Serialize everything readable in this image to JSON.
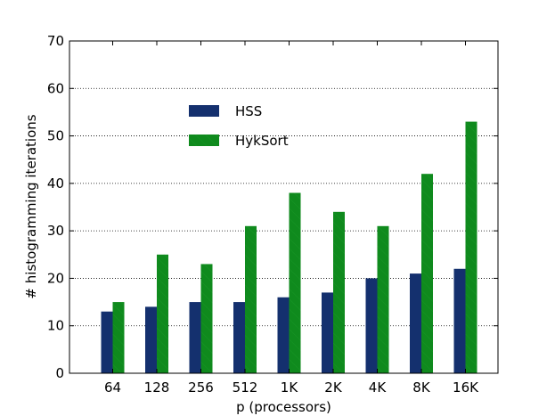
{
  "chart_data": {
    "type": "bar",
    "categories": [
      "64",
      "128",
      "256",
      "512",
      "1K",
      "2K",
      "4K",
      "8K",
      "16K"
    ],
    "series": [
      {
        "name": "HSS",
        "values": [
          13,
          14,
          15,
          15,
          16,
          17,
          20,
          21,
          22
        ],
        "color": "#14306e"
      },
      {
        "name": "HykSort",
        "values": [
          15,
          25,
          23,
          31,
          38,
          34,
          31,
          42,
          53
        ],
        "color": "#0f8a1d"
      }
    ],
    "xlabel": "p (processors)",
    "ylabel": "# histogramming iterations",
    "ylim": [
      0,
      70
    ],
    "yticks": [
      0,
      10,
      20,
      30,
      40,
      50,
      60,
      70
    ],
    "grid": "horizontal dotted",
    "legend_position": "upper-left inside"
  }
}
